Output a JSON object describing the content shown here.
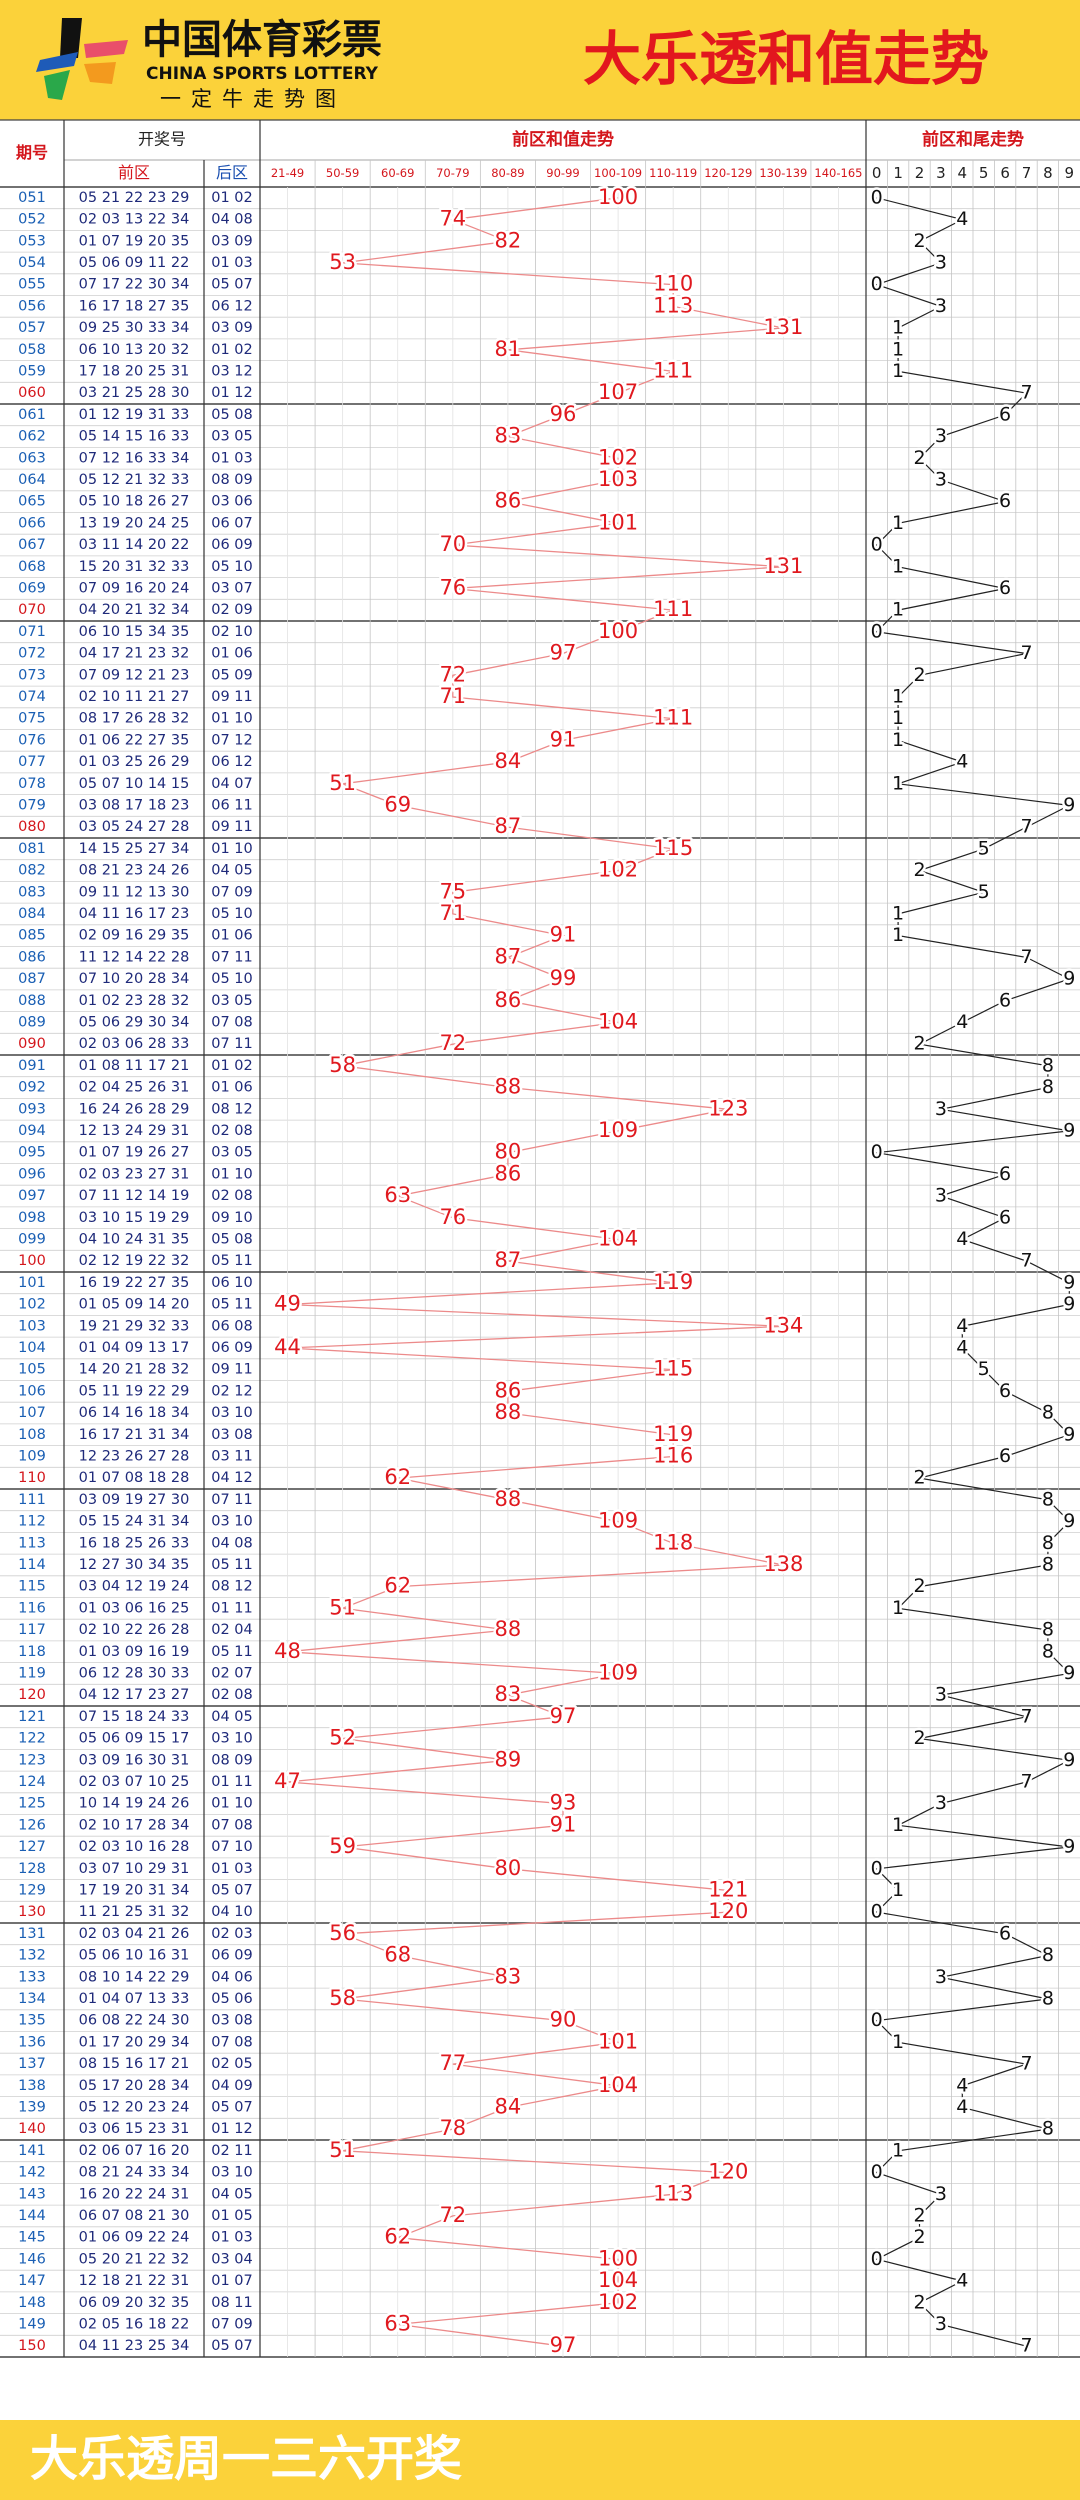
{
  "header": {
    "logo_cn": "中国体育彩票",
    "logo_en": "CHINA SPORTS LOTTERY",
    "logo_sub": "一定牛走势图",
    "title": "大乐透和值走势"
  },
  "table": {
    "col_issue": "期号",
    "col_draw": "开奖号",
    "col_front": "前区",
    "col_back": "后区",
    "col_sum": "前区和值走势",
    "col_tail": "前区和尾走势",
    "sum_ranges": [
      "21-49",
      "50-59",
      "60-69",
      "70-79",
      "80-89",
      "90-99",
      "100-109",
      "110-119",
      "120-129",
      "130-139",
      "140-165"
    ],
    "tail_digits": [
      0,
      1,
      2,
      3,
      4,
      5,
      6,
      7,
      8,
      9
    ],
    "rows": [
      [
        "051",
        "05 21 22 23 29",
        "01 02",
        100,
        0
      ],
      [
        "052",
        "02 03 13 22 34",
        "04 08",
        74,
        4
      ],
      [
        "053",
        "01 07 19 20 35",
        "03 09",
        82,
        2
      ],
      [
        "054",
        "05 06 09 11 22",
        "01 03",
        53,
        3
      ],
      [
        "055",
        "07 17 22 30 34",
        "05 07",
        110,
        0
      ],
      [
        "056",
        "16 17 18 27 35",
        "06 12",
        113,
        3
      ],
      [
        "057",
        "09 25 30 33 34",
        "03 09",
        131,
        1
      ],
      [
        "058",
        "06 10 13 20 32",
        "01 02",
        81,
        1
      ],
      [
        "059",
        "17 18 20 25 31",
        "03 12",
        111,
        1
      ],
      [
        "060",
        "03 21 25 28 30",
        "01 12",
        107,
        7
      ],
      [
        "061",
        "01 12 19 31 33",
        "05 08",
        96,
        6
      ],
      [
        "062",
        "05 14 15 16 33",
        "03 05",
        83,
        3
      ],
      [
        "063",
        "07 12 16 33 34",
        "01 03",
        102,
        2
      ],
      [
        "064",
        "05 12 21 32 33",
        "08 09",
        103,
        3
      ],
      [
        "065",
        "05 10 18 26 27",
        "03 06",
        86,
        6
      ],
      [
        "066",
        "13 19 20 24 25",
        "06 07",
        101,
        1
      ],
      [
        "067",
        "03 11 14 20 22",
        "06 09",
        70,
        0
      ],
      [
        "068",
        "15 20 31 32 33",
        "05 10",
        131,
        1
      ],
      [
        "069",
        "07 09 16 20 24",
        "03 07",
        76,
        6
      ],
      [
        "070",
        "04 20 21 32 34",
        "02 09",
        111,
        1
      ],
      [
        "071",
        "06 10 15 34 35",
        "02 10",
        100,
        0
      ],
      [
        "072",
        "04 17 21 23 32",
        "01 06",
        97,
        7
      ],
      [
        "073",
        "07 09 12 21 23",
        "05 09",
        72,
        2
      ],
      [
        "074",
        "02 10 11 21 27",
        "09 11",
        71,
        1
      ],
      [
        "075",
        "08 17 26 28 32",
        "01 10",
        111,
        1
      ],
      [
        "076",
        "01 06 22 27 35",
        "07 12",
        91,
        1
      ],
      [
        "077",
        "01 03 25 26 29",
        "06 12",
        84,
        4
      ],
      [
        "078",
        "05 07 10 14 15",
        "04 07",
        51,
        1
      ],
      [
        "079",
        "03 08 17 18 23",
        "06 11",
        69,
        9
      ],
      [
        "080",
        "03 05 24 27 28",
        "09 11",
        87,
        7
      ],
      [
        "081",
        "14 15 25 27 34",
        "01 10",
        115,
        5
      ],
      [
        "082",
        "08 21 23 24 26",
        "04 05",
        102,
        2
      ],
      [
        "083",
        "09 11 12 13 30",
        "07 09",
        75,
        5
      ],
      [
        "084",
        "04 11 16 17 23",
        "05 10",
        71,
        1
      ],
      [
        "085",
        "02 09 16 29 35",
        "01 06",
        91,
        1
      ],
      [
        "086",
        "11 12 14 22 28",
        "07 11",
        87,
        7
      ],
      [
        "087",
        "07 10 20 28 34",
        "05 10",
        99,
        9
      ],
      [
        "088",
        "01 02 23 28 32",
        "03 05",
        86,
        6
      ],
      [
        "089",
        "05 06 29 30 34",
        "07 08",
        104,
        4
      ],
      [
        "090",
        "02 03 06 28 33",
        "07 11",
        72,
        2
      ],
      [
        "091",
        "01 08 11 17 21",
        "01 02",
        58,
        8
      ],
      [
        "092",
        "02 04 25 26 31",
        "01 06",
        88,
        8
      ],
      [
        "093",
        "16 24 26 28 29",
        "08 12",
        123,
        3
      ],
      [
        "094",
        "12 13 24 29 31",
        "02 08",
        109,
        9
      ],
      [
        "095",
        "01 07 19 26 27",
        "03 05",
        80,
        0
      ],
      [
        "096",
        "02 03 23 27 31",
        "01 10",
        86,
        6
      ],
      [
        "097",
        "07 11 12 14 19",
        "02 08",
        63,
        3
      ],
      [
        "098",
        "03 10 15 19 29",
        "09 10",
        76,
        6
      ],
      [
        "099",
        "04 10 24 31 35",
        "05 08",
        104,
        4
      ],
      [
        "100",
        "02 12 19 22 32",
        "05 11",
        87,
        7
      ],
      [
        "101",
        "16 19 22 27 35",
        "06 10",
        119,
        9
      ],
      [
        "102",
        "01 05 09 14 20",
        "05 11",
        49,
        9
      ],
      [
        "103",
        "19 21 29 32 33",
        "06 08",
        134,
        4
      ],
      [
        "104",
        "01 04 09 13 17",
        "06 09",
        44,
        4
      ],
      [
        "105",
        "14 20 21 28 32",
        "09 11",
        115,
        5
      ],
      [
        "106",
        "05 11 19 22 29",
        "02 12",
        86,
        6
      ],
      [
        "107",
        "06 14 16 18 34",
        "03 10",
        88,
        8
      ],
      [
        "108",
        "16 17 21 31 34",
        "03 08",
        119,
        9
      ],
      [
        "109",
        "12 23 26 27 28",
        "03 11",
        116,
        6
      ],
      [
        "110",
        "01 07 08 18 28",
        "04 12",
        62,
        2
      ],
      [
        "111",
        "03 09 19 27 30",
        "07 11",
        88,
        8
      ],
      [
        "112",
        "05 15 24 31 34",
        "03 10",
        109,
        9
      ],
      [
        "113",
        "16 18 25 26 33",
        "04 08",
        118,
        8
      ],
      [
        "114",
        "12 27 30 34 35",
        "05 11",
        138,
        8
      ],
      [
        "115",
        "03 04 12 19 24",
        "08 12",
        62,
        2
      ],
      [
        "116",
        "01 03 06 16 25",
        "01 11",
        51,
        1
      ],
      [
        "117",
        "02 10 22 26 28",
        "02 04",
        88,
        8
      ],
      [
        "118",
        "01 03 09 16 19",
        "05 11",
        48,
        8
      ],
      [
        "119",
        "06 12 28 30 33",
        "02 07",
        109,
        9
      ],
      [
        "120",
        "04 12 17 23 27",
        "02 08",
        83,
        3
      ],
      [
        "121",
        "07 15 18 24 33",
        "04 05",
        97,
        7
      ],
      [
        "122",
        "05 06 09 15 17",
        "03 10",
        52,
        2
      ],
      [
        "123",
        "03 09 16 30 31",
        "08 09",
        89,
        9
      ],
      [
        "124",
        "02 03 07 10 25",
        "01 11",
        47,
        7
      ],
      [
        "125",
        "10 14 19 24 26",
        "01 10",
        93,
        3
      ],
      [
        "126",
        "02 10 17 28 34",
        "07 08",
        91,
        1
      ],
      [
        "127",
        "02 03 10 16 28",
        "07 10",
        59,
        9
      ],
      [
        "128",
        "03 07 10 29 31",
        "01 03",
        80,
        0
      ],
      [
        "129",
        "17 19 20 31 34",
        "05 07",
        121,
        1
      ],
      [
        "130",
        "11 21 25 31 32",
        "04 10",
        120,
        0
      ],
      [
        "131",
        "02 03 04 21 26",
        "02 03",
        56,
        6
      ],
      [
        "132",
        "05 06 10 16 31",
        "06 09",
        68,
        8
      ],
      [
        "133",
        "08 10 14 22 29",
        "04 06",
        83,
        3
      ],
      [
        "134",
        "01 04 07 13 33",
        "05 06",
        58,
        8
      ],
      [
        "135",
        "06 08 22 24 30",
        "03 08",
        90,
        0
      ],
      [
        "136",
        "01 17 20 29 34",
        "07 08",
        101,
        1
      ],
      [
        "137",
        "08 15 16 17 21",
        "02 05",
        77,
        7
      ],
      [
        "138",
        "05 17 20 28 34",
        "04 09",
        104,
        4
      ],
      [
        "139",
        "05 12 20 23 24",
        "05 07",
        84,
        4
      ],
      [
        "140",
        "03 06 15 23 31",
        "01 12",
        78,
        8
      ],
      [
        "141",
        "02 06 07 16 20",
        "02 11",
        51,
        1
      ],
      [
        "142",
        "08 21 24 33 34",
        "03 10",
        120,
        0
      ],
      [
        "143",
        "16 20 22 24 31",
        "04 05",
        113,
        3
      ],
      [
        "144",
        "06 07 08 21 30",
        "01 05",
        72,
        2
      ],
      [
        "145",
        "01 06 09 22 24",
        "01 03",
        62,
        2
      ],
      [
        "146",
        "05 20 21 22 32",
        "03 04",
        100,
        0
      ],
      [
        "147",
        "12 18 21 22 31",
        "01 07",
        104,
        4
      ],
      [
        "148",
        "06 09 20 32 35",
        "08 11",
        102,
        2
      ],
      [
        "149",
        "02 05 16 18 22",
        "07 09",
        63,
        3
      ],
      [
        "150",
        "04 11 23 25 34",
        "05 07",
        97,
        7
      ]
    ]
  },
  "footer": {
    "text": "大乐透周一三六开奖"
  }
}
